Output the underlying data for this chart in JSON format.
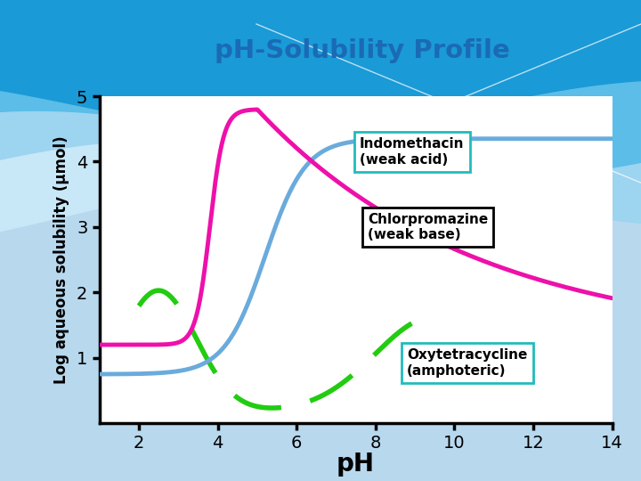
{
  "title": "pH-Solubility Profile",
  "title_color": "#1a6ab5",
  "xlabel": "pH",
  "ylabel": "Log aqueous solubility (μmol)",
  "xlim": [
    1,
    14
  ],
  "ylim": [
    0,
    5
  ],
  "xticks": [
    2,
    4,
    6,
    8,
    10,
    12,
    14
  ],
  "yticks": [
    1,
    2,
    3,
    4,
    5
  ],
  "bg_color": "#b8d8ee",
  "plot_bg": "#ffffff",
  "pink_color": "#ee10aa",
  "blue_color": "#6aabdc",
  "green_color": "#22cc11",
  "label_indomethacin": "Indomethacin\n(weak acid)",
  "label_chlorpromazine": "Chlorpromazine\n(weak base)",
  "label_oxytetracycline": "Oxytetracycline\n(amphoteric)",
  "wave_color1": "#1a9ad6",
  "wave_color2": "#5bbde8",
  "wave_color3": "#9dd4f0",
  "wave_color4": "#c8e8f8"
}
